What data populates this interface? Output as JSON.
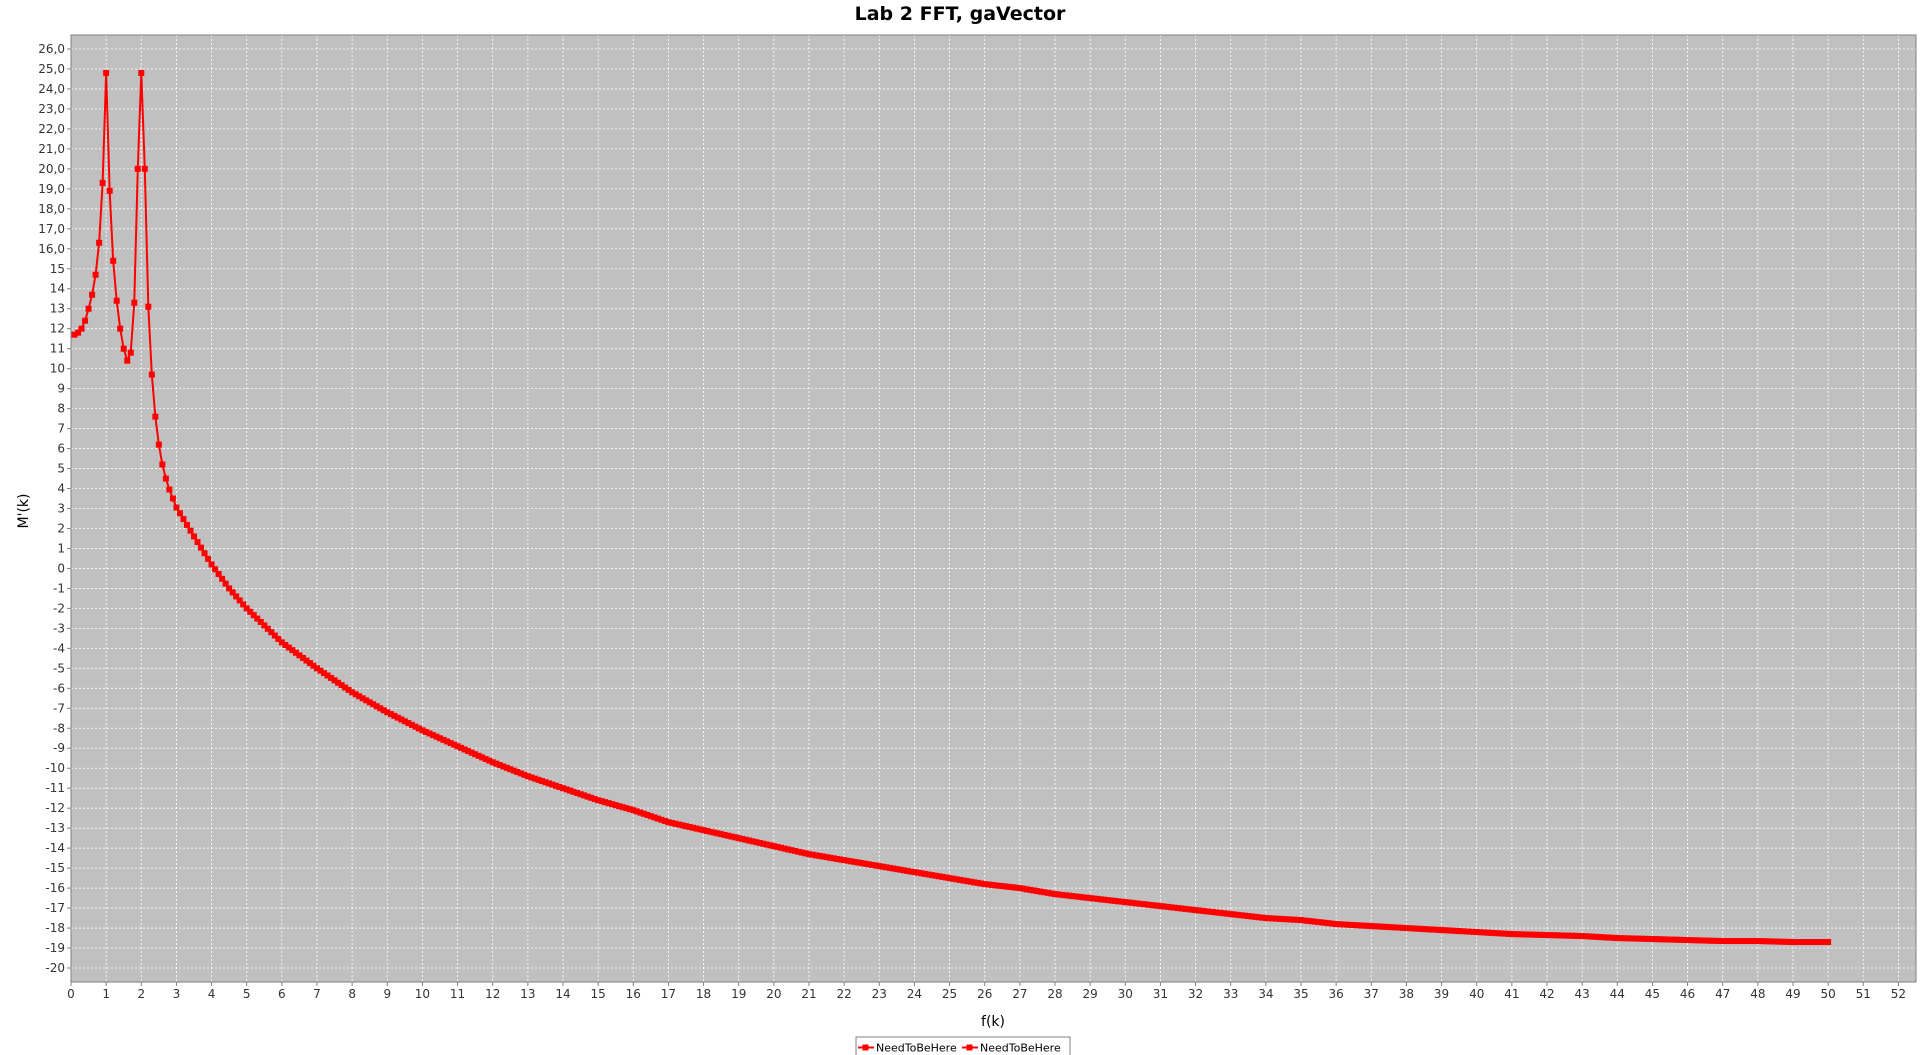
{
  "chart_data": {
    "type": "line",
    "title": "Lab 2 FFT, gaVector",
    "xlabel": "f(k)",
    "ylabel": "M'(k)",
    "xlim": [
      0,
      52.5
    ],
    "ylim": [
      -20.7,
      26.7
    ],
    "x_ticks": [
      0,
      1,
      2,
      3,
      4,
      5,
      6,
      7,
      8,
      9,
      10,
      11,
      12,
      13,
      14,
      15,
      16,
      17,
      18,
      19,
      20,
      21,
      22,
      23,
      24,
      25,
      26,
      27,
      28,
      29,
      30,
      31,
      32,
      33,
      34,
      35,
      36,
      37,
      38,
      39,
      40,
      41,
      42,
      43,
      44,
      45,
      46,
      47,
      48,
      49,
      50,
      51,
      52
    ],
    "x_tick_labels": [
      "0",
      "1",
      "2",
      "3",
      "4",
      "5",
      "6",
      "7",
      "8",
      "9",
      "10",
      "11",
      "12",
      "13",
      "14",
      "15",
      "16",
      "17",
      "18",
      "19",
      "20",
      "21",
      "22",
      "23",
      "24",
      "25",
      "26",
      "27",
      "28",
      "29",
      "30",
      "31",
      "32",
      "33",
      "34",
      "35",
      "36",
      "37",
      "38",
      "39",
      "40",
      "41",
      "42",
      "43",
      "44",
      "45",
      "46",
      "47",
      "48",
      "49",
      "50",
      "51",
      "52"
    ],
    "y_ticks": [
      26,
      25,
      24,
      23,
      22,
      21,
      20,
      19,
      18,
      17,
      16,
      15,
      14,
      13,
      12,
      11,
      10,
      9,
      8,
      7,
      6,
      5,
      4,
      3,
      2,
      1,
      0,
      -1,
      -2,
      -3,
      -4,
      -5,
      -6,
      -7,
      -8,
      -9,
      -10,
      -11,
      -12,
      -13,
      -14,
      -15,
      -16,
      -17,
      -18,
      -19,
      -20
    ],
    "y_tick_labels": [
      "26,0",
      "25,0",
      "24,0",
      "23,0",
      "22,0",
      "21,0",
      "20,0",
      "19,0",
      "18,0",
      "17,0",
      "16,0",
      "15",
      "14",
      "13",
      "12",
      "11",
      "10",
      "9",
      "8",
      "7",
      "6",
      "5",
      "4",
      "3",
      "2",
      "1",
      "0",
      "-1",
      "-2",
      "-3",
      "-4",
      "-5",
      "-6",
      "-7",
      "-8",
      "-9",
      "-10",
      "-11",
      "-12",
      "-13",
      "-14",
      "-15",
      "-16",
      "-17",
      "-18",
      "-19",
      "-20"
    ],
    "grid": true,
    "background": "#c0c0c0",
    "gridline_color": "#ffffff",
    "legend": {
      "placement": "bottom-center",
      "entries": [
        "NeedToBeHere",
        "NeedToBeHere"
      ]
    },
    "series": [
      {
        "name": "NeedToBeHere",
        "color": "#ff0000",
        "marker": "square",
        "head_points": [
          [
            0.1,
            11.7
          ],
          [
            0.2,
            11.8
          ],
          [
            0.3,
            12.0
          ],
          [
            0.4,
            12.4
          ],
          [
            0.5,
            13.0
          ],
          [
            0.6,
            13.7
          ],
          [
            0.7,
            14.7
          ],
          [
            0.8,
            16.3
          ],
          [
            0.9,
            19.3
          ],
          [
            1.0,
            24.8
          ],
          [
            1.1,
            18.9
          ],
          [
            1.2,
            15.4
          ],
          [
            1.3,
            13.4
          ],
          [
            1.4,
            12.0
          ],
          [
            1.5,
            11.0
          ],
          [
            1.6,
            10.4
          ],
          [
            1.7,
            10.8
          ],
          [
            1.8,
            13.3
          ],
          [
            1.9,
            20.0
          ],
          [
            2.0,
            24.8
          ],
          [
            2.1,
            20.0
          ],
          [
            2.2,
            13.1
          ],
          [
            2.3,
            9.7
          ],
          [
            2.4,
            7.6
          ],
          [
            2.5,
            6.2
          ],
          [
            2.6,
            5.2
          ],
          [
            2.7,
            4.5
          ],
          [
            2.8,
            3.95
          ],
          [
            2.9,
            3.5
          ],
          [
            3.0,
            3.05
          ]
        ],
        "tail_anchors": [
          [
            3.0,
            3.05
          ],
          [
            3.5,
            1.6
          ],
          [
            4.0,
            0.2
          ],
          [
            4.5,
            -1.0
          ],
          [
            5.0,
            -2.0
          ],
          [
            6.0,
            -3.7
          ],
          [
            7.0,
            -5.0
          ],
          [
            8.0,
            -6.2
          ],
          [
            9.0,
            -7.2
          ],
          [
            10.0,
            -8.1
          ],
          [
            11.0,
            -8.9
          ],
          [
            12.0,
            -9.7
          ],
          [
            13.0,
            -10.4
          ],
          [
            14.0,
            -11.0
          ],
          [
            15.0,
            -11.6
          ],
          [
            16.0,
            -12.1
          ],
          [
            17.0,
            -12.7
          ],
          [
            18.0,
            -13.1
          ],
          [
            19.0,
            -13.5
          ],
          [
            20.0,
            -13.9
          ],
          [
            21.0,
            -14.3
          ],
          [
            22.0,
            -14.6
          ],
          [
            23.0,
            -14.9
          ],
          [
            24.0,
            -15.2
          ],
          [
            25.0,
            -15.5
          ],
          [
            26.0,
            -15.8
          ],
          [
            27.0,
            -16.0
          ],
          [
            28.0,
            -16.3
          ],
          [
            29.0,
            -16.5
          ],
          [
            30.0,
            -16.7
          ],
          [
            31.0,
            -16.9
          ],
          [
            32.0,
            -17.1
          ],
          [
            33.0,
            -17.3
          ],
          [
            34.0,
            -17.5
          ],
          [
            35.0,
            -17.6
          ],
          [
            36.0,
            -17.8
          ],
          [
            37.0,
            -17.9
          ],
          [
            38.0,
            -18.0
          ],
          [
            39.0,
            -18.1
          ],
          [
            40.0,
            -18.2
          ],
          [
            41.0,
            -18.3
          ],
          [
            42.0,
            -18.35
          ],
          [
            43.0,
            -18.4
          ],
          [
            44.0,
            -18.5
          ],
          [
            45.0,
            -18.55
          ],
          [
            46.0,
            -18.6
          ],
          [
            47.0,
            -18.65
          ],
          [
            48.0,
            -18.65
          ],
          [
            49.0,
            -18.7
          ],
          [
            50.0,
            -18.7
          ]
        ]
      }
    ]
  }
}
